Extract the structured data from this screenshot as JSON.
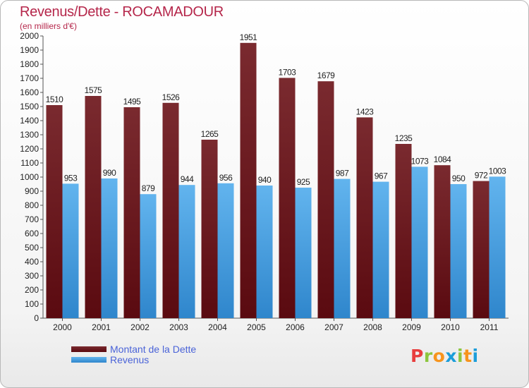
{
  "title": "Revenus/Dette - ROCAMADOUR",
  "subtitle": "(en milliers d'€)",
  "logo": {
    "letters": [
      "P",
      "r",
      "o",
      "x",
      "i",
      "t",
      "i"
    ],
    "colors": [
      "#e83e3e",
      "#8cc63f",
      "#f7941d",
      "#1b9dd9",
      "#8cc63f",
      "#f7941d",
      "#1b9dd9"
    ]
  },
  "colors": {
    "dette_top": "#7a2a2f",
    "dette_bottom": "#5a0a10",
    "revenus_top": "#62b4ee",
    "revenus_bottom": "#2f86cc",
    "axis_text": "#222222",
    "title": "#b5264a",
    "legend_text": "#4a63d8"
  },
  "chart_data": {
    "type": "bar",
    "categories": [
      "2000",
      "2001",
      "2002",
      "2003",
      "2004",
      "2005",
      "2006",
      "2007",
      "2008",
      "2009",
      "2010",
      "2011"
    ],
    "series": [
      {
        "name": "Montant de la Dette",
        "values": [
          1510,
          1575,
          1495,
          1526,
          1265,
          1951,
          1703,
          1679,
          1423,
          1235,
          1084,
          972
        ]
      },
      {
        "name": "Revenus",
        "values": [
          953,
          990,
          879,
          944,
          956,
          940,
          925,
          987,
          967,
          1073,
          950,
          1003
        ]
      }
    ],
    "ylim": [
      0,
      2000
    ],
    "yticks": [
      0,
      100,
      200,
      300,
      400,
      500,
      600,
      700,
      800,
      900,
      1000,
      1100,
      1200,
      1300,
      1400,
      1500,
      1600,
      1700,
      1800,
      1900,
      2000
    ],
    "grid": false,
    "legend": "bottom-left"
  }
}
